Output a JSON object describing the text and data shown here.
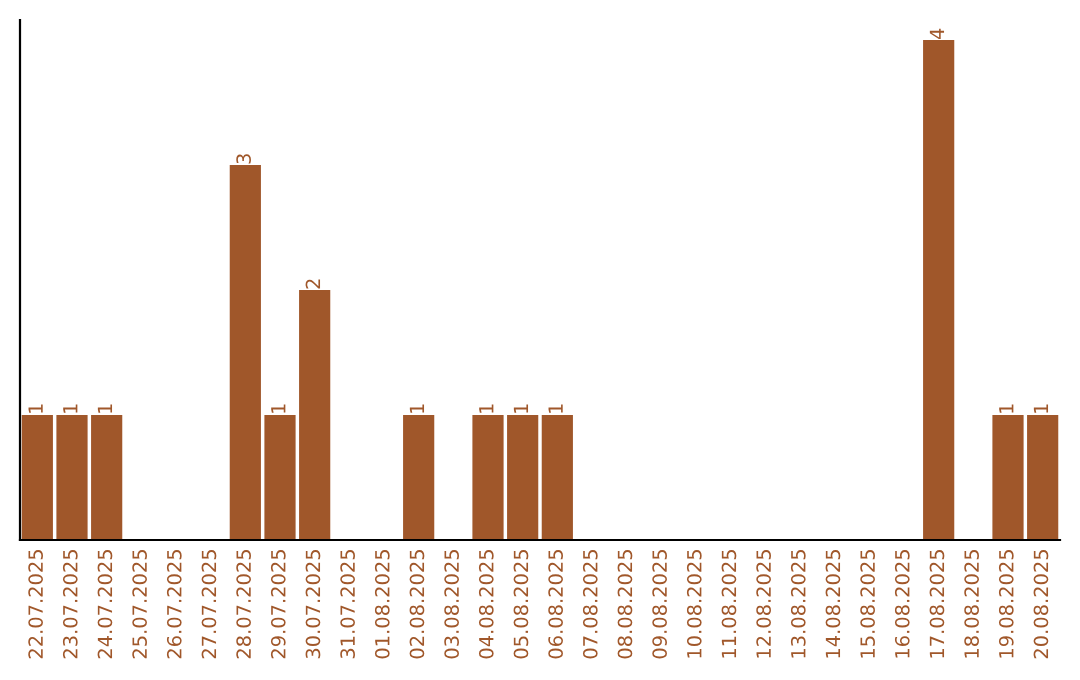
{
  "chart_data": {
    "type": "bar",
    "categories": [
      "22.07.2025",
      "23.07.2025",
      "24.07.2025",
      "25.07.2025",
      "26.07.2025",
      "27.07.2025",
      "28.07.2025",
      "29.07.2025",
      "30.07.2025",
      "31.07.2025",
      "01.08.2025",
      "02.08.2025",
      "03.08.2025",
      "04.08.2025",
      "05.08.2025",
      "06.08.2025",
      "07.08.2025",
      "08.08.2025",
      "09.08.2025",
      "10.08.2025",
      "11.08.2025",
      "12.08.2025",
      "13.08.2025",
      "14.08.2025",
      "15.08.2025",
      "16.08.2025",
      "17.08.2025",
      "18.08.2025",
      "19.08.2025",
      "20.08.2025"
    ],
    "values": [
      1,
      1,
      1,
      0,
      0,
      0,
      3,
      1,
      2,
      0,
      0,
      1,
      0,
      1,
      1,
      1,
      0,
      0,
      0,
      0,
      0,
      0,
      0,
      0,
      0,
      0,
      4,
      0,
      1,
      1
    ],
    "value_labels": [
      "1",
      "1",
      "1",
      null,
      null,
      null,
      "3",
      "1",
      "2",
      null,
      null,
      "1",
      null,
      "1",
      "1",
      "1",
      null,
      null,
      null,
      null,
      null,
      null,
      null,
      null,
      null,
      null,
      "4",
      null,
      "1",
      "1"
    ],
    "color": "#a0572a",
    "grid": false,
    "legend": false
  }
}
